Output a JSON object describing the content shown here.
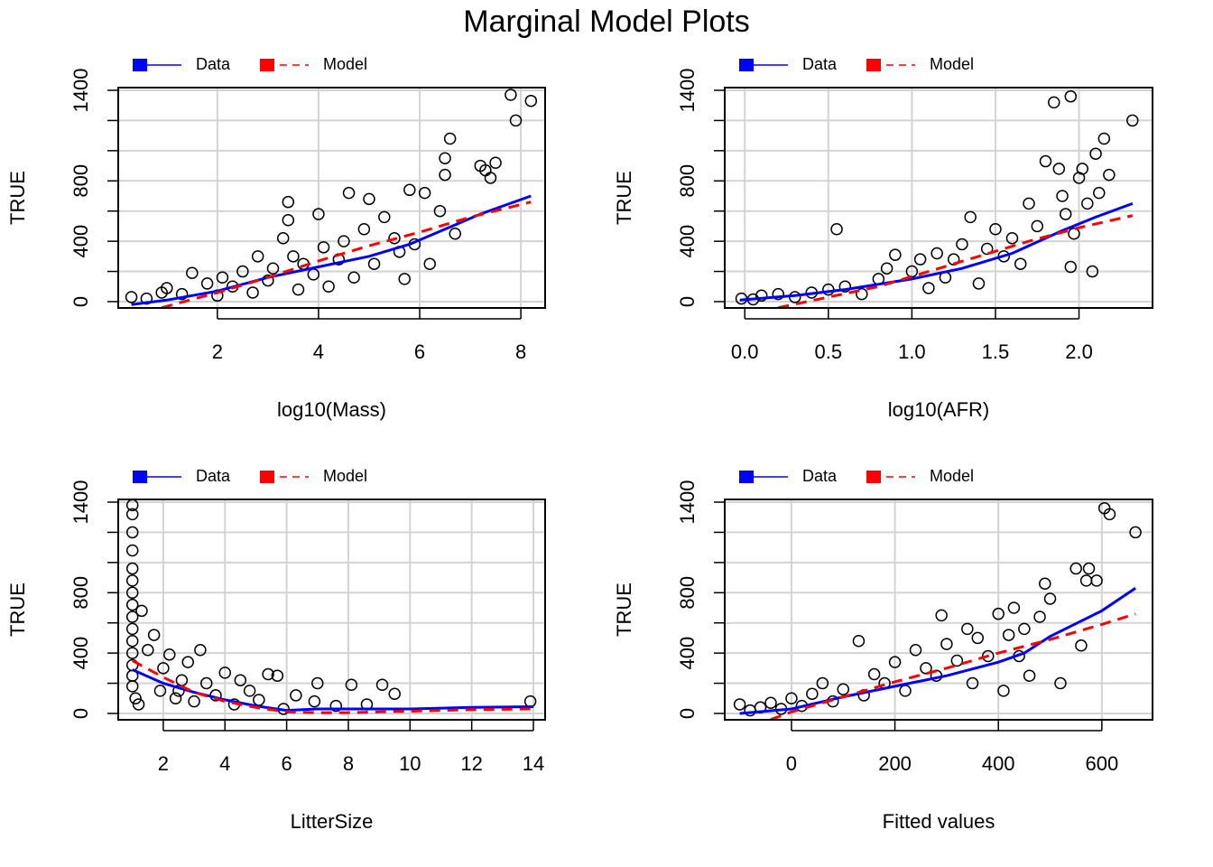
{
  "title": "Marginal Model Plots",
  "chart_data": [
    {
      "type": "scatter",
      "xlabel": "log10(Mass)",
      "ylabel": "TRUE",
      "grid": true,
      "legend": "top",
      "xlim": [
        0.04,
        8.48
      ],
      "ylim": [
        -42,
        1418
      ],
      "xticks": [
        2,
        4,
        6,
        8
      ],
      "yticks": [
        0,
        400,
        800,
        1400
      ],
      "yticks_minor": [
        200,
        600,
        1000,
        1200
      ],
      "points": {
        "color": "#000000",
        "x": [
          0.3,
          0.6,
          0.9,
          1.0,
          1.3,
          1.5,
          1.8,
          2.0,
          2.1,
          2.3,
          2.5,
          2.7,
          2.8,
          3.0,
          3.1,
          3.3,
          3.4,
          3.4,
          3.5,
          3.6,
          3.7,
          3.9,
          4.0,
          4.1,
          4.2,
          4.4,
          4.5,
          4.6,
          4.7,
          4.9,
          5.0,
          5.1,
          5.3,
          5.5,
          5.6,
          5.7,
          5.8,
          5.9,
          6.1,
          6.2,
          6.4,
          6.5,
          6.6,
          6.7,
          7.2,
          7.3,
          7.4,
          7.5,
          7.8,
          7.9,
          8.2,
          6.5
        ],
        "y": [
          30,
          20,
          60,
          90,
          50,
          190,
          120,
          40,
          160,
          100,
          200,
          60,
          300,
          140,
          220,
          420,
          660,
          540,
          300,
          80,
          250,
          180,
          580,
          360,
          100,
          280,
          400,
          720,
          160,
          480,
          680,
          250,
          560,
          420,
          330,
          150,
          740,
          380,
          720,
          250,
          600,
          950,
          1080,
          450,
          900,
          870,
          820,
          920,
          1370,
          1200,
          1330,
          840
        ]
      },
      "series": [
        {
          "name": "Data",
          "color": "#0000ff",
          "dash": false,
          "x": [
            0.3,
            1,
            2,
            3,
            4,
            5,
            5.8,
            6.5,
            7.2,
            8.2
          ],
          "y": [
            -20,
            10,
            70,
            160,
            230,
            300,
            380,
            480,
            580,
            700
          ]
        },
        {
          "name": "Model",
          "color": "#ff0000",
          "dash": true,
          "x": [
            0.9,
            2,
            3,
            4,
            5,
            6,
            7,
            8.2
          ],
          "y": [
            -40,
            60,
            160,
            270,
            370,
            460,
            560,
            660
          ]
        }
      ]
    },
    {
      "type": "scatter",
      "xlabel": "log10(AFR)",
      "ylabel": "TRUE",
      "grid": true,
      "legend": "top",
      "xlim": [
        -0.12,
        2.44
      ],
      "ylim": [
        -42,
        1418
      ],
      "xticks": [
        {
          "value": 0,
          "label": "0.0"
        },
        0.5,
        {
          "value": 1,
          "label": "1.0"
        },
        1.5,
        {
          "value": 2,
          "label": "2.0"
        }
      ],
      "yticks": [
        0,
        400,
        800,
        1400
      ],
      "yticks_minor": [
        200,
        600,
        1000,
        1200
      ],
      "points": {
        "color": "#000000",
        "x": [
          -0.02,
          0.05,
          0.1,
          0.2,
          0.3,
          0.4,
          0.5,
          0.55,
          0.6,
          0.7,
          0.8,
          0.85,
          0.9,
          1.0,
          1.05,
          1.1,
          1.15,
          1.2,
          1.25,
          1.3,
          1.35,
          1.4,
          1.45,
          1.5,
          1.55,
          1.6,
          1.65,
          1.7,
          1.75,
          1.8,
          1.85,
          1.88,
          1.9,
          1.92,
          1.95,
          1.97,
          2.0,
          2.02,
          2.05,
          2.08,
          2.1,
          2.12,
          2.15,
          2.18,
          2.32,
          1.95
        ],
        "y": [
          20,
          15,
          40,
          50,
          30,
          60,
          80,
          480,
          100,
          50,
          150,
          220,
          310,
          200,
          280,
          90,
          320,
          160,
          280,
          380,
          560,
          120,
          350,
          480,
          300,
          420,
          250,
          650,
          500,
          930,
          1320,
          880,
          700,
          580,
          1360,
          450,
          820,
          880,
          650,
          200,
          980,
          720,
          1080,
          840,
          1200,
          230
        ]
      },
      "series": [
        {
          "name": "Data",
          "color": "#0000ff",
          "dash": false,
          "x": [
            -0.03,
            0.3,
            0.6,
            1.0,
            1.3,
            1.6,
            1.9,
            2.1,
            2.32
          ],
          "y": [
            10,
            40,
            80,
            150,
            220,
            320,
            470,
            560,
            650
          ]
        },
        {
          "name": "Model",
          "color": "#ff0000",
          "dash": true,
          "x": [
            0.2,
            0.5,
            0.8,
            1.1,
            1.4,
            1.7,
            2.0,
            2.32
          ],
          "y": [
            -40,
            30,
            100,
            200,
            300,
            400,
            490,
            570
          ]
        }
      ]
    },
    {
      "type": "scatter",
      "xlabel": "LitterSize",
      "ylabel": "TRUE",
      "grid": true,
      "legend": "top",
      "xlim": [
        0.54,
        14.38
      ],
      "ylim": [
        -42,
        1418
      ],
      "xticks": [
        2,
        4,
        6,
        8,
        10,
        12,
        14
      ],
      "yticks": [
        0,
        400,
        800,
        1400
      ],
      "yticks_minor": [
        200,
        600,
        1000,
        1200
      ],
      "points": {
        "color": "#000000",
        "x": [
          1,
          1,
          1,
          1,
          1,
          1,
          1,
          1,
          1,
          1,
          1,
          1,
          1,
          1,
          1,
          1.1,
          1.2,
          1.3,
          1.5,
          1.7,
          1.9,
          2,
          2.2,
          2.4,
          2.6,
          2.8,
          3,
          3.2,
          3.4,
          3.7,
          4,
          4.3,
          4.5,
          4.8,
          5.1,
          5.4,
          5.7,
          5.9,
          6.3,
          6.9,
          7,
          7.6,
          8.1,
          8.6,
          9.1,
          9.5,
          13.9,
          2.5
        ],
        "y": [
          1380,
          1320,
          1200,
          1080,
          960,
          880,
          800,
          720,
          640,
          560,
          480,
          400,
          320,
          250,
          180,
          100,
          60,
          680,
          420,
          520,
          150,
          300,
          390,
          100,
          220,
          340,
          80,
          420,
          200,
          120,
          270,
          60,
          220,
          150,
          90,
          260,
          250,
          30,
          120,
          80,
          200,
          50,
          190,
          60,
          190,
          130,
          80,
          150
        ]
      },
      "series": [
        {
          "name": "Data",
          "color": "#0000ff",
          "dash": false,
          "x": [
            1,
            2,
            3,
            4,
            5,
            6,
            7,
            8,
            10,
            12,
            14
          ],
          "y": [
            290,
            200,
            140,
            90,
            50,
            20,
            30,
            30,
            30,
            40,
            45
          ]
        },
        {
          "name": "Model",
          "color": "#ff0000",
          "dash": true,
          "x": [
            1,
            2,
            3,
            4,
            5,
            6,
            7,
            8,
            10,
            12,
            14
          ],
          "y": [
            350,
            240,
            140,
            80,
            40,
            10,
            5,
            5,
            15,
            25,
            30
          ]
        }
      ]
    },
    {
      "type": "scatter",
      "xlabel": "Fitted values",
      "ylabel": "TRUE",
      "grid": true,
      "legend": "top",
      "xlim": [
        -129,
        698
      ],
      "ylim": [
        -42,
        1418
      ],
      "xticks": [
        0,
        200,
        400,
        600
      ],
      "yticks": [
        0,
        400,
        800,
        1400
      ],
      "yticks_minor": [
        200,
        600,
        1000,
        1200
      ],
      "points": {
        "color": "#000000",
        "x": [
          -100,
          -80,
          -60,
          -40,
          -20,
          0,
          20,
          40,
          60,
          80,
          100,
          130,
          140,
          160,
          180,
          200,
          220,
          240,
          260,
          280,
          290,
          300,
          320,
          340,
          350,
          360,
          380,
          400,
          410,
          420,
          430,
          440,
          450,
          460,
          480,
          490,
          500,
          520,
          550,
          560,
          570,
          575,
          590,
          605,
          615,
          665
        ],
        "y": [
          60,
          20,
          40,
          70,
          30,
          100,
          50,
          130,
          200,
          80,
          160,
          480,
          120,
          260,
          200,
          340,
          150,
          420,
          300,
          250,
          650,
          460,
          350,
          560,
          200,
          500,
          380,
          660,
          150,
          520,
          700,
          380,
          560,
          250,
          640,
          860,
          760,
          200,
          960,
          450,
          880,
          960,
          880,
          1360,
          1320,
          1200
        ]
      },
      "series": [
        {
          "name": "Data",
          "color": "#0000ff",
          "dash": false,
          "x": [
            -100,
            0,
            100,
            200,
            300,
            400,
            450,
            500,
            600,
            665
          ],
          "y": [
            0,
            30,
            110,
            180,
            250,
            340,
            400,
            510,
            680,
            830
          ]
        },
        {
          "name": "Model",
          "color": "#ff0000",
          "dash": true,
          "x": [
            -40,
            0,
            100,
            200,
            300,
            400,
            500,
            600,
            665
          ],
          "y": [
            -40,
            10,
            110,
            210,
            300,
            400,
            490,
            590,
            660
          ]
        }
      ]
    }
  ]
}
